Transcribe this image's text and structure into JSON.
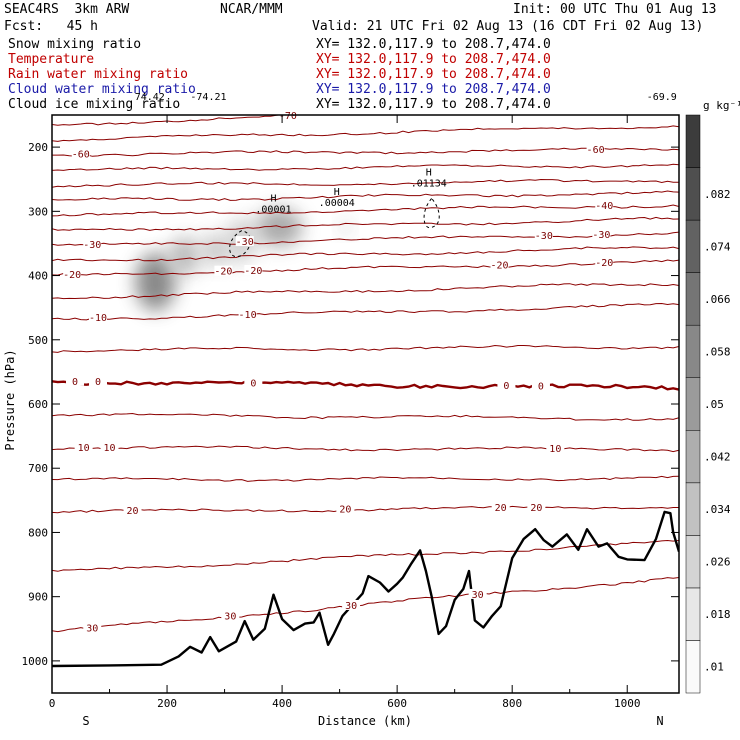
{
  "header": {
    "run": "SEAC4RS  3km ARW",
    "center": "NCAR/MMM",
    "init": "Init: 00 UTC Thu 01 Aug 13",
    "fcst": "Fcst:   45 h",
    "valid": "Valid: 21 UTC Fri 02 Aug 13 (16 CDT Fri 02 Aug 13)"
  },
  "legend_fields": [
    {
      "name": "Snow mixing ratio",
      "xy": "XY= 132.0,117.9 to 208.7,474.0",
      "color": "#000000"
    },
    {
      "name": "Temperature",
      "xy": "XY= 132.0,117.9 to 208.7,474.0",
      "color": "#c00000"
    },
    {
      "name": "Rain water mixing ratio",
      "xy": "XY= 132.0,117.9 to 208.7,474.0",
      "color": "#c00000"
    },
    {
      "name": "Cloud water mixing ratio",
      "xy": "XY= 132.0,117.9 to 208.7,474.0",
      "color": "#1a1aa8"
    },
    {
      "name": "Cloud ice mixing ratio",
      "xy": "XY= 132.0,117.9 to 208.7,474.0",
      "color": "#000000"
    }
  ],
  "chart_data": {
    "type": "cross-section",
    "xlabel": "Distance (km)",
    "ylabel": "Pressure (hPa)",
    "xlim": [
      0,
      1090
    ],
    "ylim": [
      150,
      1050
    ],
    "x_ticks": [
      0,
      200,
      400,
      600,
      800,
      1000
    ],
    "y_ticks": [
      200,
      300,
      400,
      500,
      600,
      700,
      800,
      900,
      1000
    ],
    "x_end_labels": {
      "left": "S",
      "right": "N"
    },
    "colorbar": {
      "unit": "g kg⁻¹",
      "labels": [
        ".01",
        ".018",
        ".026",
        ".034",
        ".042",
        ".05",
        ".058",
        ".066",
        ".074",
        ".082"
      ]
    },
    "temperature_isotherms": [
      {
        "t": -70,
        "p_left": 165,
        "p_right": 130,
        "labels": [
          {
            "x": 410,
            "text": "-70"
          }
        ]
      },
      {
        "t": -60,
        "p_left": 212,
        "p_right": 203,
        "labels": [
          {
            "x": 50,
            "text": "-60"
          },
          {
            "x": 945,
            "text": "-60"
          }
        ]
      },
      {
        "t": -50,
        "p_left": 260,
        "p_right": 252,
        "labels": []
      },
      {
        "t": -40,
        "p_left": 307,
        "p_right": 290,
        "labels": [
          {
            "x": 960,
            "text": "-40"
          }
        ]
      },
      {
        "t": -30,
        "p_left": 354,
        "p_right": 334,
        "labels": [
          {
            "x": 70,
            "text": "-30"
          },
          {
            "x": 335,
            "text": "-30"
          },
          {
            "x": 855,
            "text": "-30"
          },
          {
            "x": 955,
            "text": "-30"
          }
        ]
      },
      {
        "t": -20,
        "p_left": 400,
        "p_right": 378,
        "labels": [
          {
            "x": 35,
            "text": "-20"
          },
          {
            "x": 298,
            "text": "-20"
          },
          {
            "x": 350,
            "text": "-20"
          },
          {
            "x": 778,
            "text": "-20"
          },
          {
            "x": 960,
            "text": "-20"
          }
        ]
      },
      {
        "t": -10,
        "p_left": 468,
        "p_right": 446,
        "labels": [
          {
            "x": 80,
            "text": "-10"
          },
          {
            "x": 340,
            "text": "-10"
          }
        ]
      },
      {
        "t": 0,
        "p_left": 565,
        "p_right": 575,
        "labels": [
          {
            "x": 40,
            "text": "0"
          },
          {
            "x": 80,
            "text": "0"
          },
          {
            "x": 350,
            "text": "0"
          },
          {
            "x": 790,
            "text": "0"
          },
          {
            "x": 850,
            "text": "0"
          }
        ]
      },
      {
        "t": 10,
        "p_left": 668,
        "p_right": 671,
        "labels": [
          {
            "x": 55,
            "text": "10"
          },
          {
            "x": 100,
            "text": "10"
          },
          {
            "x": 875,
            "text": "10"
          }
        ]
      },
      {
        "t": 20,
        "p_left": 768,
        "p_right": 760,
        "labels": [
          {
            "x": 140,
            "text": "20"
          },
          {
            "x": 510,
            "text": "20"
          },
          {
            "x": 780,
            "text": "20"
          },
          {
            "x": 842,
            "text": "20"
          }
        ]
      },
      {
        "t": 30,
        "p_left": 955,
        "p_right": 870,
        "labels": [
          {
            "x": 70,
            "text": "30"
          },
          {
            "x": 310,
            "text": "30"
          },
          {
            "x": 520,
            "text": "30"
          },
          {
            "x": 740,
            "text": "30"
          }
        ]
      }
    ],
    "terrain_pressure": [
      [
        0,
        1008
      ],
      [
        100,
        1007
      ],
      [
        190,
        1006
      ],
      [
        220,
        993
      ],
      [
        240,
        978
      ],
      [
        260,
        987
      ],
      [
        275,
        963
      ],
      [
        290,
        985
      ],
      [
        320,
        970
      ],
      [
        335,
        938
      ],
      [
        350,
        967
      ],
      [
        370,
        950
      ],
      [
        385,
        897
      ],
      [
        400,
        935
      ],
      [
        420,
        952
      ],
      [
        440,
        942
      ],
      [
        455,
        940
      ],
      [
        465,
        925
      ],
      [
        480,
        975
      ],
      [
        490,
        958
      ],
      [
        505,
        930
      ],
      [
        520,
        915
      ],
      [
        540,
        895
      ],
      [
        550,
        868
      ],
      [
        570,
        878
      ],
      [
        585,
        892
      ],
      [
        600,
        880
      ],
      [
        610,
        870
      ],
      [
        625,
        848
      ],
      [
        640,
        828
      ],
      [
        650,
        860
      ],
      [
        660,
        900
      ],
      [
        672,
        958
      ],
      [
        685,
        946
      ],
      [
        700,
        905
      ],
      [
        715,
        888
      ],
      [
        725,
        860
      ],
      [
        735,
        937
      ],
      [
        750,
        948
      ],
      [
        765,
        930
      ],
      [
        780,
        915
      ],
      [
        800,
        840
      ],
      [
        820,
        810
      ],
      [
        840,
        795
      ],
      [
        855,
        812
      ],
      [
        870,
        822
      ],
      [
        895,
        803
      ],
      [
        915,
        827
      ],
      [
        930,
        795
      ],
      [
        950,
        822
      ],
      [
        965,
        817
      ],
      [
        985,
        838
      ],
      [
        1000,
        842
      ],
      [
        1030,
        843
      ],
      [
        1050,
        810
      ],
      [
        1065,
        768
      ],
      [
        1075,
        770
      ],
      [
        1080,
        800
      ],
      [
        1090,
        830
      ]
    ],
    "snow_max_labels": [
      {
        "x": 385,
        "p": 300,
        "text": "H",
        "value": ".00001"
      },
      {
        "x": 495,
        "p": 290,
        "text": "H",
        "value": ".00004"
      },
      {
        "x": 655,
        "p": 260,
        "text": "H",
        "value": ".01134"
      }
    ],
    "top_labels": [
      {
        "x": 170,
        "text": "74.42"
      },
      {
        "x": 272,
        "text": "-74.21"
      },
      {
        "x": 1060,
        "text": "-69.9"
      }
    ],
    "snow_cells": [
      {
        "x": 180,
        "p": 410,
        "rx": 35,
        "rp": 45,
        "q": 0.07
      },
      {
        "x": 230,
        "p": 370,
        "rx": 28,
        "rp": 30,
        "q": 0.04
      },
      {
        "x": 285,
        "p": 360,
        "rx": 30,
        "rp": 25,
        "q": 0.03
      },
      {
        "x": 330,
        "p": 345,
        "rx": 25,
        "rp": 35,
        "q": 0.03
      },
      {
        "x": 395,
        "p": 325,
        "rx": 40,
        "rp": 30,
        "q": 0.05
      },
      {
        "x": 510,
        "p": 325,
        "rx": 12,
        "rp": 12,
        "q": 0.02
      }
    ]
  }
}
